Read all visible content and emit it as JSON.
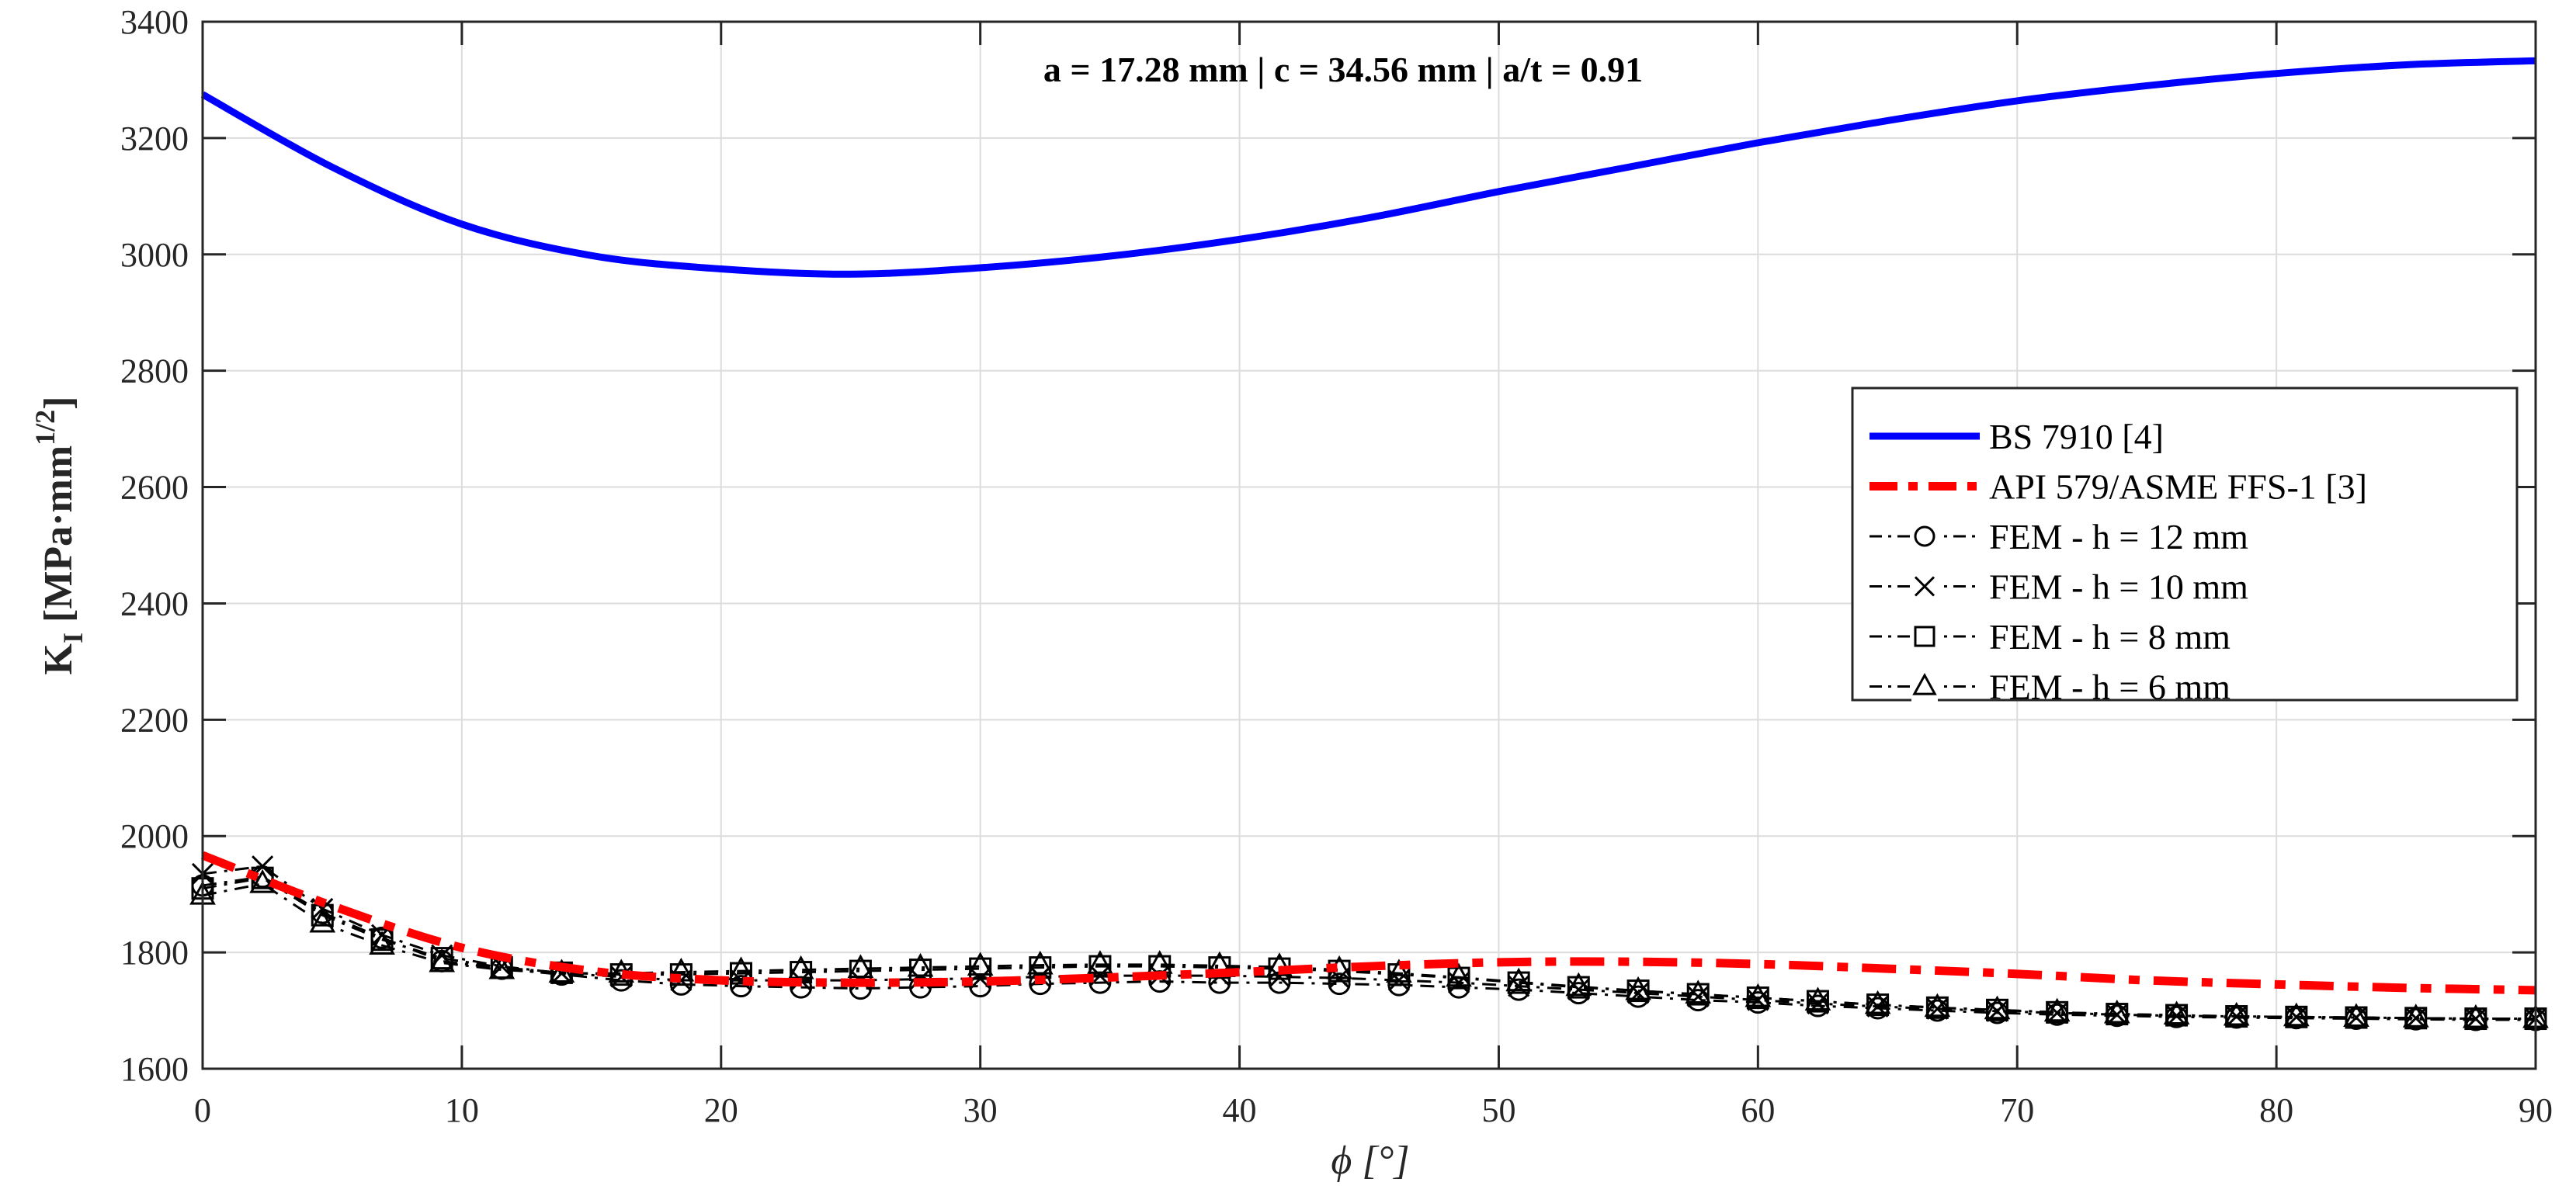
{
  "chart_data": {
    "type": "line",
    "title": "",
    "annotation": "a = 17.28 mm  |  c = 34.56 mm  |  a/t = 0.91",
    "xlabel": "ϕ [°]",
    "ylabel": "K_I [MPa·mm^1/2]",
    "ylabel_parts": {
      "main": "K",
      "sub": "I",
      "unit": " [MPa·mm",
      "sup": "1/2",
      "close": "]"
    },
    "xlim": [
      0,
      90
    ],
    "ylim": [
      1600,
      3400
    ],
    "xticks": [
      0,
      10,
      20,
      30,
      40,
      50,
      60,
      70,
      80,
      90
    ],
    "yticks": [
      1600,
      1800,
      2000,
      2200,
      2400,
      2600,
      2800,
      3000,
      3200,
      3400
    ],
    "grid": true,
    "legend_position": "right-middle",
    "series": [
      {
        "name": "BS 7910 [4]",
        "color": "#0000ff",
        "style": "solid",
        "marker": "none",
        "x": [
          0,
          5,
          10,
          15,
          20,
          25,
          30,
          35,
          40,
          45,
          50,
          55,
          60,
          65,
          70,
          75,
          80,
          85,
          90
        ],
        "values": [
          3275,
          3150,
          3052,
          2998,
          2975,
          2966,
          2977,
          2997,
          3026,
          3063,
          3108,
          3150,
          3192,
          3230,
          3264,
          3290,
          3311,
          3326,
          3333
        ]
      },
      {
        "name": "API 579/ASME FFS-1 [3]",
        "color": "#ff0000",
        "style": "dashdot",
        "marker": "none",
        "x": [
          0,
          5,
          10,
          15,
          20,
          25,
          30,
          35,
          40,
          45,
          50,
          55,
          60,
          65,
          70,
          75,
          80,
          85,
          90
        ],
        "values": [
          1967,
          1880,
          1808,
          1768,
          1752,
          1748,
          1750,
          1757,
          1766,
          1776,
          1783,
          1784,
          1780,
          1772,
          1763,
          1752,
          1745,
          1739,
          1735
        ]
      },
      {
        "name": "FEM - h = 12 mm",
        "color": "#000000",
        "style": "dashdot-thin",
        "marker": "circle",
        "x": [
          0,
          2.31,
          4.62,
          6.92,
          9.23,
          11.54,
          13.85,
          16.15,
          18.46,
          20.77,
          23.08,
          25.38,
          27.69,
          30,
          32.31,
          34.62,
          36.92,
          39.23,
          41.54,
          43.85,
          46.15,
          48.46,
          50.77,
          53.08,
          55.38,
          57.69,
          60,
          62.31,
          64.62,
          66.92,
          69.23,
          71.54,
          73.85,
          76.15,
          78.46,
          80.77,
          83.08,
          85.38,
          87.69,
          90
        ],
        "values": [
          1915,
          1930,
          1868,
          1825,
          1785,
          1772,
          1762,
          1752,
          1745,
          1742,
          1740,
          1738,
          1740,
          1742,
          1746,
          1748,
          1750,
          1748,
          1748,
          1746,
          1744,
          1740,
          1736,
          1730,
          1724,
          1718,
          1714,
          1708,
          1704,
          1700,
          1696,
          1693,
          1691,
          1689,
          1688,
          1687,
          1686,
          1685,
          1684,
          1684
        ]
      },
      {
        "name": "FEM - h = 10 mm",
        "color": "#000000",
        "style": "dashdot-thin",
        "marker": "x",
        "x": [
          0,
          2.31,
          4.62,
          6.92,
          9.23,
          11.54,
          13.85,
          16.15,
          18.46,
          20.77,
          23.08,
          25.38,
          27.69,
          30,
          32.31,
          34.62,
          36.92,
          39.23,
          41.54,
          43.85,
          46.15,
          48.46,
          50.77,
          53.08,
          55.38,
          57.69,
          60,
          62.31,
          64.62,
          66.92,
          69.23,
          71.54,
          73.85,
          76.15,
          78.46,
          80.77,
          83.08,
          85.38,
          87.69,
          90
        ],
        "values": [
          1935,
          1948,
          1875,
          1830,
          1795,
          1776,
          1764,
          1758,
          1752,
          1752,
          1752,
          1752,
          1754,
          1755,
          1758,
          1760,
          1760,
          1760,
          1758,
          1756,
          1752,
          1748,
          1742,
          1736,
          1730,
          1724,
          1718,
          1712,
          1707,
          1703,
          1699,
          1696,
          1693,
          1691,
          1690,
          1689,
          1688,
          1687,
          1686,
          1686
        ]
      },
      {
        "name": "FEM - h = 8 mm",
        "color": "#000000",
        "style": "dashdot-thin",
        "marker": "square",
        "x": [
          0,
          2.31,
          4.62,
          6.92,
          9.23,
          11.54,
          13.85,
          16.15,
          18.46,
          20.77,
          23.08,
          25.38,
          27.69,
          30,
          32.31,
          34.62,
          36.92,
          39.23,
          41.54,
          43.85,
          46.15,
          48.46,
          50.77,
          53.08,
          55.38,
          57.69,
          60,
          62.31,
          64.62,
          66.92,
          69.23,
          71.54,
          73.85,
          76.15,
          78.46,
          80.77,
          83.08,
          85.38,
          87.69,
          90
        ],
        "values": [
          1910,
          1928,
          1864,
          1822,
          1790,
          1774,
          1765,
          1762,
          1762,
          1764,
          1766,
          1768,
          1770,
          1772,
          1774,
          1776,
          1776,
          1774,
          1772,
          1768,
          1762,
          1756,
          1748,
          1740,
          1734,
          1728,
          1722,
          1716,
          1710,
          1705,
          1701,
          1697,
          1694,
          1692,
          1690,
          1689,
          1688,
          1687,
          1686,
          1686
        ]
      },
      {
        "name": "FEM - h = 6 mm",
        "color": "#000000",
        "style": "dashdot-thin",
        "marker": "triangle",
        "x": [
          0,
          2.31,
          4.62,
          6.92,
          9.23,
          11.54,
          13.85,
          16.15,
          18.46,
          20.77,
          23.08,
          25.38,
          27.69,
          30,
          32.31,
          34.62,
          36.92,
          39.23,
          41.54,
          43.85,
          46.15,
          48.46,
          50.77,
          53.08,
          55.38,
          57.69,
          60,
          62.31,
          64.62,
          66.92,
          69.23,
          71.54,
          73.85,
          76.15,
          78.46,
          80.77,
          83.08,
          85.38,
          87.69,
          90
        ],
        "values": [
          1898,
          1918,
          1850,
          1812,
          1782,
          1770,
          1764,
          1764,
          1766,
          1768,
          1770,
          1772,
          1774,
          1776,
          1778,
          1779,
          1779,
          1777,
          1775,
          1770,
          1764,
          1757,
          1749,
          1741,
          1734,
          1728,
          1722,
          1716,
          1710,
          1705,
          1701,
          1697,
          1694,
          1692,
          1690,
          1689,
          1688,
          1687,
          1686,
          1686
        ]
      }
    ]
  },
  "legend": {
    "items": [
      {
        "label": "BS 7910 [4]"
      },
      {
        "label": "API 579/ASME FFS-1 [3]"
      },
      {
        "label": "FEM - h = 12 mm"
      },
      {
        "label": "FEM - h = 10 mm"
      },
      {
        "label": "FEM - h = 8 mm"
      },
      {
        "label": "FEM - h = 6 mm"
      }
    ]
  },
  "colors": {
    "axis": "#262626",
    "grid": "#dcdcdc",
    "bs7910": "#0000ff",
    "api579": "#ff0000",
    "fem": "#000000"
  }
}
